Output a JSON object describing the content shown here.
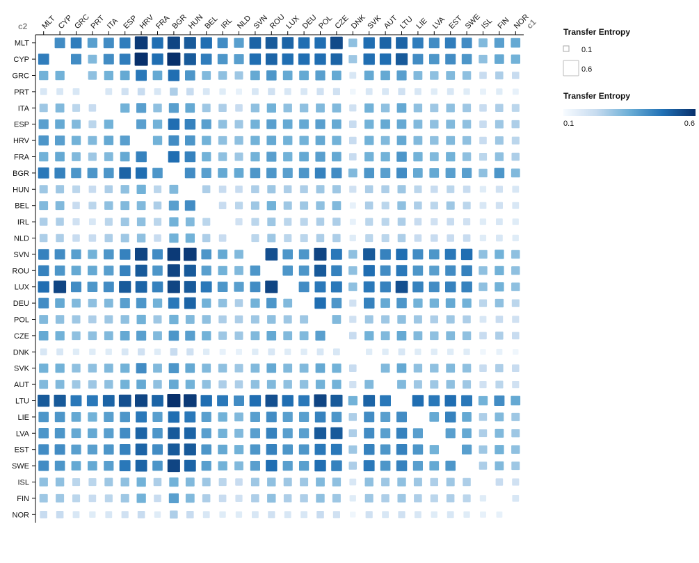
{
  "chart_data": {
    "type": "heatmap",
    "x_axis_label": "c1",
    "y_axis_label": "c2",
    "columns": [
      "MLT",
      "CYP",
      "GRC",
      "PRT",
      "ITA",
      "ESP",
      "HRV",
      "FRA",
      "BGR",
      "HUN",
      "BEL",
      "IRL",
      "NLD",
      "SVN",
      "ROU",
      "LUX",
      "DEU",
      "POL",
      "CZE",
      "DNK",
      "SVK",
      "AUT",
      "LTU",
      "LIE",
      "LVA",
      "EST",
      "SWE",
      "ISL",
      "FIN",
      "NOR"
    ],
    "rows": [
      "MLT",
      "CYP",
      "GRC",
      "PRT",
      "ITA",
      "ESP",
      "HRV",
      "FRA",
      "BGR",
      "HUN",
      "BEL",
      "IRL",
      "NLD",
      "SVN",
      "ROU",
      "LUX",
      "DEU",
      "POL",
      "CZE",
      "DNK",
      "SVK",
      "AUT",
      "LTU",
      "LIE",
      "LVA",
      "EST",
      "SWE",
      "ISL",
      "FIN",
      "NOR"
    ],
    "row_levels_description": "values in transfer entropy units, row = c2, column = c1; diagonal empty",
    "values": [
      [
        null,
        0.42,
        0.45,
        0.38,
        0.42,
        0.45,
        0.58,
        0.48,
        0.56,
        0.52,
        0.48,
        0.42,
        0.38,
        0.5,
        0.52,
        0.5,
        0.48,
        0.48,
        0.55,
        0.3,
        0.48,
        0.5,
        0.5,
        0.45,
        0.42,
        0.45,
        0.42,
        0.32,
        0.38,
        0.36
      ],
      [
        0.45,
        null,
        0.42,
        0.32,
        0.42,
        0.45,
        0.6,
        0.48,
        0.6,
        0.52,
        0.45,
        0.4,
        0.38,
        0.48,
        0.5,
        0.48,
        0.48,
        0.48,
        0.5,
        0.28,
        0.48,
        0.48,
        0.52,
        0.42,
        0.4,
        0.42,
        0.4,
        0.3,
        0.36,
        0.34
      ],
      [
        0.34,
        0.34,
        null,
        0.3,
        0.34,
        0.36,
        0.46,
        0.36,
        0.48,
        0.4,
        0.32,
        0.3,
        0.28,
        0.36,
        0.4,
        0.36,
        0.36,
        0.38,
        0.36,
        0.18,
        0.36,
        0.36,
        0.38,
        0.32,
        0.3,
        0.32,
        0.3,
        0.22,
        0.26,
        0.22
      ],
      [
        0.18,
        0.18,
        0.18,
        null,
        0.18,
        0.2,
        0.22,
        0.18,
        0.26,
        0.22,
        0.18,
        0.16,
        0.14,
        0.18,
        0.2,
        0.18,
        0.18,
        0.2,
        0.2,
        0.12,
        0.18,
        0.18,
        0.2,
        0.18,
        0.16,
        0.18,
        0.16,
        0.14,
        0.16,
        0.14
      ],
      [
        0.28,
        0.32,
        0.24,
        0.22,
        null,
        0.34,
        0.38,
        0.3,
        0.38,
        0.36,
        0.28,
        0.26,
        0.22,
        0.3,
        0.34,
        0.3,
        0.3,
        0.32,
        0.32,
        0.2,
        0.34,
        0.3,
        0.36,
        0.3,
        0.28,
        0.3,
        0.28,
        0.22,
        0.26,
        0.24
      ],
      [
        0.38,
        0.36,
        0.32,
        0.24,
        0.34,
        null,
        0.38,
        0.34,
        0.48,
        0.44,
        0.38,
        0.3,
        0.28,
        0.34,
        0.38,
        0.36,
        0.36,
        0.38,
        0.36,
        0.22,
        0.34,
        0.36,
        0.36,
        0.32,
        0.3,
        0.32,
        0.3,
        0.22,
        0.28,
        0.26
      ],
      [
        0.4,
        0.38,
        0.34,
        0.32,
        0.36,
        0.38,
        null,
        0.34,
        0.42,
        0.4,
        0.34,
        0.3,
        0.3,
        0.34,
        0.36,
        0.34,
        0.34,
        0.36,
        0.34,
        0.22,
        0.34,
        0.32,
        0.36,
        0.32,
        0.3,
        0.32,
        0.3,
        0.22,
        0.28,
        0.24
      ],
      [
        0.34,
        0.36,
        0.32,
        0.28,
        0.32,
        0.36,
        0.44,
        null,
        0.48,
        0.44,
        0.34,
        0.3,
        0.28,
        0.34,
        0.38,
        0.34,
        0.36,
        0.38,
        0.36,
        0.22,
        0.34,
        0.34,
        0.4,
        0.34,
        0.32,
        0.34,
        0.3,
        0.24,
        0.3,
        0.26
      ],
      [
        0.46,
        0.44,
        0.4,
        0.4,
        0.4,
        0.5,
        0.48,
        0.4,
        null,
        0.42,
        0.38,
        0.36,
        0.36,
        0.4,
        0.4,
        0.38,
        0.4,
        0.44,
        0.42,
        0.32,
        0.4,
        0.38,
        0.42,
        0.36,
        0.36,
        0.38,
        0.38,
        0.3,
        0.4,
        0.32
      ],
      [
        0.28,
        0.28,
        0.24,
        0.22,
        0.26,
        0.3,
        0.34,
        0.24,
        0.32,
        null,
        0.26,
        0.22,
        0.22,
        0.26,
        0.28,
        0.26,
        0.26,
        0.28,
        0.28,
        0.2,
        0.26,
        0.26,
        0.28,
        0.24,
        0.22,
        0.24,
        0.22,
        0.16,
        0.2,
        0.18
      ],
      [
        0.32,
        0.32,
        0.22,
        0.24,
        0.3,
        0.32,
        0.32,
        0.26,
        0.38,
        0.42,
        null,
        0.22,
        0.24,
        0.28,
        0.34,
        0.28,
        0.28,
        0.3,
        0.32,
        0.14,
        0.26,
        0.24,
        0.3,
        0.26,
        0.24,
        0.28,
        0.24,
        0.18,
        0.2,
        0.18
      ],
      [
        0.26,
        0.26,
        0.2,
        0.18,
        0.24,
        0.28,
        0.3,
        0.24,
        0.34,
        0.32,
        0.24,
        null,
        0.2,
        0.24,
        0.28,
        0.24,
        0.24,
        0.26,
        0.26,
        0.14,
        0.24,
        0.24,
        0.26,
        0.22,
        0.2,
        0.22,
        0.2,
        0.16,
        0.18,
        0.16
      ],
      [
        0.26,
        0.26,
        0.22,
        0.22,
        0.26,
        0.28,
        0.3,
        0.22,
        0.34,
        0.34,
        0.26,
        0.22,
        null,
        0.24,
        0.28,
        0.24,
        0.24,
        0.26,
        0.26,
        0.16,
        0.24,
        0.24,
        0.26,
        0.22,
        0.22,
        0.22,
        0.22,
        0.16,
        0.18,
        0.16
      ],
      [
        0.44,
        0.42,
        0.38,
        0.34,
        0.4,
        0.44,
        0.56,
        0.42,
        0.58,
        0.58,
        0.4,
        0.36,
        0.32,
        null,
        0.54,
        0.4,
        0.4,
        0.56,
        0.46,
        0.3,
        0.52,
        0.44,
        0.48,
        0.42,
        0.4,
        0.46,
        0.48,
        0.3,
        0.34,
        0.3
      ],
      [
        0.44,
        0.4,
        0.36,
        0.36,
        0.38,
        0.44,
        0.52,
        0.4,
        0.56,
        0.52,
        0.38,
        0.34,
        0.32,
        0.4,
        null,
        0.4,
        0.4,
        0.52,
        0.44,
        0.3,
        0.48,
        0.42,
        0.46,
        0.4,
        0.38,
        0.42,
        0.44,
        0.3,
        0.34,
        0.3
      ],
      [
        0.48,
        0.56,
        0.42,
        0.4,
        0.42,
        0.52,
        0.5,
        0.44,
        0.56,
        0.52,
        0.46,
        0.4,
        0.38,
        0.42,
        0.56,
        null,
        0.42,
        0.46,
        0.46,
        0.3,
        0.46,
        0.44,
        0.54,
        0.44,
        0.42,
        0.44,
        0.44,
        0.3,
        0.34,
        0.3
      ],
      [
        0.42,
        0.36,
        0.32,
        0.3,
        0.32,
        0.38,
        0.4,
        0.34,
        0.46,
        0.5,
        0.34,
        0.3,
        0.26,
        0.34,
        0.4,
        0.32,
        null,
        0.48,
        0.4,
        0.2,
        0.44,
        0.36,
        0.4,
        0.34,
        0.34,
        0.36,
        0.34,
        0.24,
        0.3,
        0.24
      ],
      [
        0.32,
        0.3,
        0.28,
        0.26,
        0.28,
        0.3,
        0.34,
        0.28,
        0.34,
        0.32,
        0.3,
        0.26,
        0.26,
        0.28,
        0.3,
        0.28,
        0.28,
        null,
        0.32,
        0.2,
        0.28,
        0.28,
        0.3,
        0.28,
        0.26,
        0.28,
        0.26,
        0.18,
        0.22,
        0.2
      ],
      [
        0.36,
        0.34,
        0.3,
        0.3,
        0.32,
        0.36,
        0.38,
        0.32,
        0.4,
        0.38,
        0.34,
        0.28,
        0.28,
        0.32,
        0.36,
        0.32,
        0.32,
        0.38,
        null,
        0.22,
        0.34,
        0.32,
        0.36,
        0.32,
        0.3,
        0.32,
        0.3,
        0.22,
        0.26,
        0.22
      ],
      [
        0.18,
        0.18,
        0.16,
        0.16,
        0.16,
        0.18,
        0.2,
        0.16,
        0.22,
        0.2,
        0.16,
        0.14,
        0.14,
        0.16,
        0.18,
        0.16,
        0.16,
        0.18,
        0.18,
        null,
        0.16,
        0.16,
        0.18,
        0.16,
        0.16,
        0.16,
        0.16,
        0.12,
        0.14,
        0.12
      ],
      [
        0.34,
        0.34,
        0.3,
        0.3,
        0.32,
        0.34,
        0.42,
        0.32,
        0.4,
        0.36,
        0.32,
        0.3,
        0.28,
        0.32,
        0.36,
        0.32,
        0.32,
        0.36,
        0.34,
        0.22,
        null,
        0.32,
        0.36,
        0.3,
        0.3,
        0.32,
        0.3,
        0.22,
        0.26,
        0.22
      ],
      [
        0.32,
        0.32,
        0.28,
        0.28,
        0.3,
        0.34,
        0.36,
        0.3,
        0.36,
        0.34,
        0.3,
        0.26,
        0.26,
        0.3,
        0.32,
        0.3,
        0.3,
        0.34,
        0.34,
        0.2,
        0.32,
        null,
        0.32,
        0.28,
        0.28,
        0.3,
        0.28,
        0.2,
        0.24,
        0.2
      ],
      [
        0.52,
        0.52,
        0.46,
        0.46,
        0.5,
        0.54,
        0.56,
        0.5,
        0.6,
        0.58,
        0.48,
        0.46,
        0.42,
        0.48,
        0.54,
        0.48,
        0.46,
        0.56,
        0.52,
        0.34,
        0.5,
        0.46,
        null,
        0.48,
        0.46,
        0.48,
        0.46,
        0.34,
        0.42,
        0.36
      ],
      [
        0.4,
        0.4,
        0.36,
        0.34,
        0.38,
        0.4,
        0.46,
        0.38,
        0.48,
        0.46,
        0.38,
        0.34,
        0.32,
        0.38,
        0.42,
        0.38,
        0.38,
        0.44,
        0.4,
        0.26,
        0.42,
        0.38,
        0.42,
        null,
        0.36,
        0.44,
        0.36,
        0.26,
        0.32,
        0.28
      ],
      [
        0.4,
        0.4,
        0.36,
        0.36,
        0.38,
        0.42,
        0.5,
        0.4,
        0.52,
        0.5,
        0.38,
        0.34,
        0.32,
        0.38,
        0.44,
        0.38,
        0.38,
        0.52,
        0.52,
        0.26,
        0.42,
        0.38,
        0.44,
        0.38,
        null,
        0.38,
        0.36,
        0.26,
        0.32,
        0.28
      ],
      [
        0.42,
        0.42,
        0.38,
        0.38,
        0.4,
        0.44,
        0.5,
        0.42,
        0.52,
        0.52,
        0.4,
        0.36,
        0.34,
        0.4,
        0.44,
        0.4,
        0.4,
        0.46,
        0.46,
        0.28,
        0.44,
        0.4,
        0.44,
        0.4,
        0.34,
        null,
        0.38,
        0.28,
        0.34,
        0.3
      ],
      [
        0.42,
        0.4,
        0.36,
        0.36,
        0.38,
        0.46,
        0.5,
        0.4,
        0.56,
        0.5,
        0.38,
        0.34,
        0.32,
        0.38,
        0.48,
        0.38,
        0.38,
        0.48,
        0.44,
        0.26,
        0.46,
        0.4,
        0.44,
        0.38,
        0.36,
        0.4,
        null,
        0.26,
        0.32,
        0.28
      ],
      [
        0.3,
        0.3,
        0.24,
        0.24,
        0.28,
        0.3,
        0.34,
        0.26,
        0.34,
        0.32,
        0.28,
        0.24,
        0.22,
        0.28,
        0.3,
        0.28,
        0.28,
        0.32,
        0.3,
        0.18,
        0.3,
        0.28,
        0.3,
        0.28,
        0.26,
        0.28,
        0.26,
        null,
        0.22,
        0.2
      ],
      [
        0.28,
        0.28,
        0.24,
        0.22,
        0.24,
        0.28,
        0.34,
        0.22,
        0.38,
        0.32,
        0.26,
        0.22,
        0.2,
        0.26,
        0.3,
        0.26,
        0.26,
        0.3,
        0.28,
        0.16,
        0.28,
        0.26,
        0.28,
        0.26,
        0.24,
        0.26,
        0.24,
        0.16,
        null,
        0.18
      ],
      [
        0.22,
        0.22,
        0.18,
        0.16,
        0.18,
        0.2,
        0.22,
        0.16,
        0.26,
        0.22,
        0.18,
        0.16,
        0.16,
        0.18,
        0.2,
        0.18,
        0.18,
        0.22,
        0.2,
        0.12,
        0.2,
        0.18,
        0.2,
        0.18,
        0.16,
        0.18,
        0.16,
        0.14,
        0.14,
        null
      ]
    ],
    "size_legend": {
      "title": "Transfer Entropy",
      "items": [
        "0.1",
        "0.6"
      ],
      "values": [
        0.1,
        0.6
      ]
    },
    "color_legend": {
      "title": "Transfer Entropy",
      "min_label": "0.1",
      "max_label": "0.6",
      "min": 0.1,
      "max": 0.6
    },
    "colors": {
      "low": "#f7fbff",
      "high": "#08306b",
      "axis": "#000000",
      "axis_name": "#888888"
    }
  }
}
